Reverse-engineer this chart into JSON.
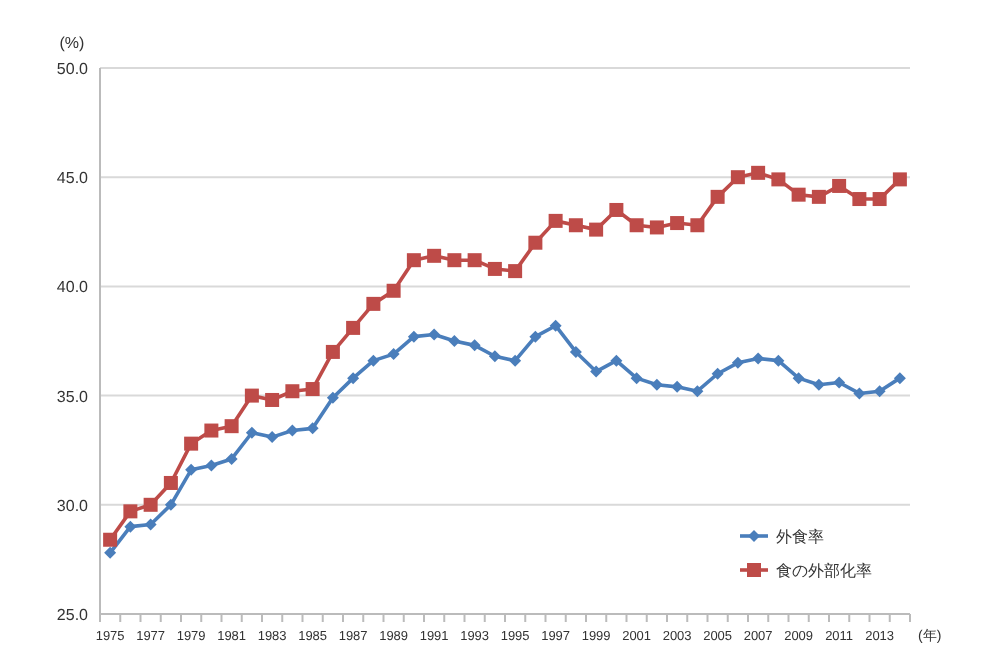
{
  "chart_data": {
    "type": "line",
    "ylabel": "(%)",
    "xlabel": "(年)",
    "categories": [
      "1975",
      null,
      "1977",
      null,
      "1979",
      null,
      "1981",
      null,
      "1983",
      null,
      "1985",
      null,
      "1987",
      null,
      "1989",
      null,
      "1991",
      null,
      "1993",
      null,
      "1995",
      null,
      "1997",
      null,
      "1999",
      null,
      "2001",
      null,
      "2003",
      null,
      "2005",
      null,
      "2007",
      null,
      "2009",
      null,
      "2011",
      null,
      "2013",
      null
    ],
    "ylim": [
      25,
      50
    ],
    "yticks": [
      {
        "value": 25,
        "label": "25.0"
      },
      {
        "value": 30,
        "label": "30.0"
      },
      {
        "value": 35,
        "label": "35.0"
      },
      {
        "value": 40,
        "label": "40.0"
      },
      {
        "value": 45,
        "label": "45.0"
      },
      {
        "value": 50,
        "label": "50.0"
      }
    ],
    "grid": "y",
    "legend": "bottom right",
    "series": [
      {
        "name": "外食率",
        "color": "#4a7ebb",
        "marker": "diamond",
        "values": [
          27.8,
          29.0,
          29.1,
          30.0,
          31.6,
          31.8,
          32.1,
          33.3,
          33.1,
          33.4,
          33.5,
          34.9,
          35.8,
          36.6,
          36.9,
          37.7,
          37.8,
          37.5,
          37.3,
          36.8,
          36.6,
          37.7,
          38.2,
          37.0,
          36.1,
          36.6,
          35.8,
          35.5,
          35.4,
          35.2,
          36.0,
          36.5,
          36.7,
          36.6,
          35.8,
          35.5,
          35.6,
          35.1,
          35.2,
          35.8
        ]
      },
      {
        "name": "食の外部化率",
        "color": "#be4b48",
        "marker": "square",
        "values": [
          28.4,
          29.7,
          30.0,
          31.0,
          32.8,
          33.4,
          33.6,
          35.0,
          34.8,
          35.2,
          35.3,
          37.0,
          38.1,
          39.2,
          39.8,
          41.2,
          41.4,
          41.2,
          41.2,
          40.8,
          40.7,
          42.0,
          43.0,
          42.8,
          42.6,
          43.5,
          42.8,
          42.7,
          42.9,
          42.8,
          44.1,
          45.0,
          45.2,
          44.9,
          44.2,
          44.1,
          44.6,
          44.0,
          44.0,
          44.9
        ]
      }
    ]
  }
}
